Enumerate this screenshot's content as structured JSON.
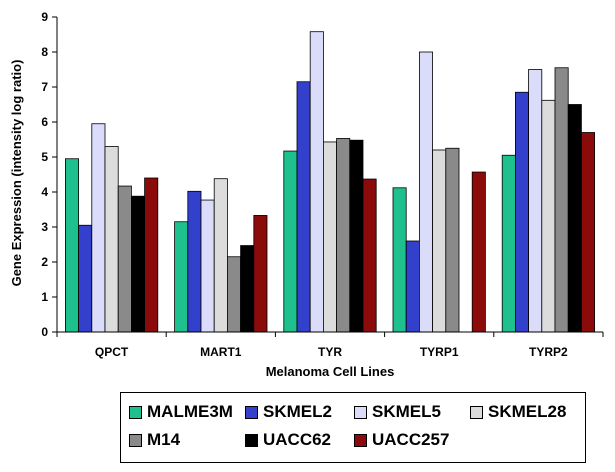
{
  "chart_data": {
    "type": "bar",
    "title": "",
    "xlabel": "Melanoma Cell Lines",
    "ylabel": "Gene Expression (intensity log ratio)",
    "ylim": [
      0,
      9
    ],
    "yticks": [
      "0",
      "1",
      "2",
      "3",
      "4",
      "5",
      "6",
      "7",
      "8",
      "9"
    ],
    "grid": false,
    "legend_position": "bottom",
    "categories": [
      "QPCT",
      "MART1",
      "TYR",
      "TYRP1",
      "TYRP2"
    ],
    "series": [
      {
        "name": "MALME3M",
        "color": "#1ec08e",
        "values": [
          4.95,
          3.15,
          5.17,
          4.12,
          5.05
        ]
      },
      {
        "name": "SKMEL2",
        "color": "#3340cc",
        "values": [
          3.05,
          4.02,
          7.15,
          2.6,
          6.85
        ]
      },
      {
        "name": "SKMEL5",
        "color": "#dadcfa",
        "values": [
          5.95,
          3.77,
          8.58,
          8.0,
          7.5
        ]
      },
      {
        "name": "SKMEL28",
        "color": "#dcdcdc",
        "values": [
          5.3,
          4.38,
          5.43,
          5.2,
          6.62
        ]
      },
      {
        "name": "M14",
        "color": "#8a8a8a",
        "values": [
          4.17,
          2.15,
          5.53,
          5.25,
          7.55
        ]
      },
      {
        "name": "UACC62",
        "color": "#000000",
        "values": [
          3.88,
          2.47,
          5.48,
          null,
          6.5
        ]
      },
      {
        "name": "UACC257",
        "color": "#8b0a0a",
        "values": [
          4.4,
          3.33,
          4.37,
          4.57,
          5.7
        ]
      }
    ]
  }
}
